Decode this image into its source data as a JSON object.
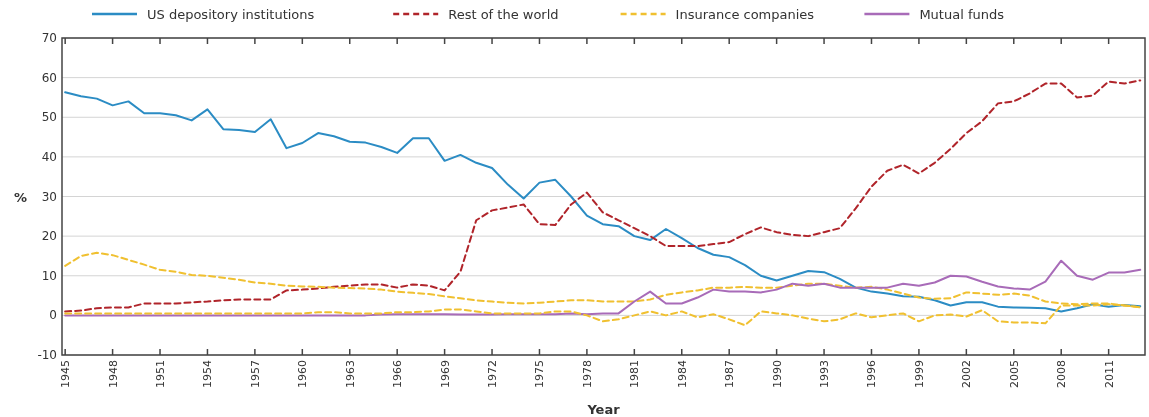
{
  "chart_data": {
    "type": "line",
    "xlabel": "Year",
    "ylabel": "%",
    "x": [
      1945,
      1946,
      1947,
      1948,
      1949,
      1950,
      1951,
      1952,
      1953,
      1954,
      1955,
      1956,
      1957,
      1958,
      1959,
      1960,
      1961,
      1962,
      1963,
      1964,
      1965,
      1966,
      1967,
      1968,
      1969,
      1970,
      1971,
      1972,
      1973,
      1974,
      1975,
      1976,
      1977,
      1978,
      1979,
      1980,
      1981,
      1982,
      1983,
      1984,
      1985,
      1986,
      1987,
      1988,
      1989,
      1990,
      1991,
      1992,
      1993,
      1994,
      1995,
      1996,
      1997,
      1998,
      1999,
      2000,
      2001,
      2002,
      2003,
      2004,
      2005,
      2006,
      2007,
      2008,
      2009,
      2010,
      2011,
      2012,
      2013
    ],
    "xlim": [
      1944.8,
      2013.3
    ],
    "xticks": [
      1945,
      1948,
      1951,
      1954,
      1957,
      1960,
      1963,
      1966,
      1969,
      1972,
      1975,
      1978,
      1981,
      1984,
      1987,
      1990,
      1993,
      1996,
      1999,
      2002,
      2005,
      2008,
      2011
    ],
    "ylim": [
      -10,
      70
    ],
    "yticks": [
      -10,
      0,
      10,
      20,
      30,
      40,
      50,
      60,
      70
    ],
    "grid": "y",
    "legend": "top",
    "series": [
      {
        "name": "US depository institutions",
        "color": "#2b8cc4",
        "line_style": "solid",
        "values": [
          56.3,
          55.3,
          54.7,
          53,
          54,
          51,
          51,
          50.5,
          49.2,
          52,
          47,
          46.8,
          46.3,
          49.5,
          42.2,
          43.5,
          46,
          45.2,
          43.8,
          43.6,
          42.5,
          41,
          44.7,
          44.7,
          39,
          40.5,
          38.5,
          37.2,
          33,
          29.5,
          33.5,
          34.2,
          30,
          25.2,
          23,
          22.5,
          20,
          19,
          21.8,
          19.5,
          17,
          15.3,
          14.7,
          12.7,
          10,
          8.8,
          10,
          11.2,
          10.9,
          9.2,
          7,
          6,
          5.5,
          4.8,
          4.7,
          3.8,
          2.5,
          3.3,
          3.3,
          2.2,
          2,
          1.9,
          1.8,
          1,
          1.8,
          2.8,
          2.2,
          2.6,
          2.3
        ]
      },
      {
        "name": "Rest of the world",
        "color": "#b0242a",
        "line_style": "dashed",
        "values": [
          1,
          1.2,
          1.8,
          2,
          2,
          3,
          3,
          3,
          3.3,
          3.5,
          3.8,
          4,
          4,
          4,
          6.3,
          6.5,
          6.8,
          7.2,
          7.5,
          7.8,
          7.8,
          7,
          7.8,
          7.5,
          6.3,
          11,
          24,
          26.5,
          27.2,
          28,
          23,
          22.8,
          28,
          31,
          26,
          24,
          22,
          20,
          17.5,
          17.5,
          17.5,
          18,
          18.5,
          20.5,
          22.2,
          21,
          20.3,
          20,
          21,
          22,
          27,
          32.5,
          36.5,
          38,
          35.8,
          38.5,
          42,
          46,
          49,
          53.5,
          54,
          56,
          58.5,
          58.5,
          55,
          55.5,
          59,
          58.5,
          59.3
        ]
      },
      {
        "name": "Insurance companies",
        "color": "#f0c030",
        "line_style": "dashed",
        "values": [
          12.5,
          15,
          15.8,
          15.2,
          14,
          12.8,
          11.5,
          11,
          10.2,
          10,
          9.5,
          9,
          8.3,
          8,
          7.5,
          7.3,
          7.2,
          7,
          6.9,
          6.8,
          6.5,
          6,
          5.7,
          5.4,
          4.8,
          4.3,
          3.8,
          3.5,
          3.2,
          3,
          3.2,
          3.5,
          3.8,
          3.8,
          3.5,
          3.5,
          3.5,
          4,
          5.2,
          5.8,
          6.3,
          7,
          7,
          7.2,
          7,
          7,
          7.5,
          8,
          8,
          7.5,
          7,
          7.2,
          6.5,
          5.5,
          4.5,
          4.2,
          4.3,
          5.8,
          5.5,
          5.2,
          5.5,
          5,
          3.5,
          3,
          2.8,
          3,
          3,
          2.5,
          2
        ]
      },
      {
        "name": "Mutual funds",
        "color": "#a86bb8",
        "line_style": "solid",
        "values": [
          0,
          0,
          0,
          0,
          0,
          0,
          0,
          0,
          0,
          0,
          0,
          0,
          0,
          0,
          0,
          0,
          0,
          0,
          0,
          0,
          0.2,
          0.3,
          0.3,
          0.3,
          0.3,
          0.2,
          0.2,
          0.2,
          0.3,
          0.3,
          0.3,
          0.3,
          0.5,
          0.3,
          0.5,
          0.5,
          3.5,
          6,
          3,
          3,
          4.5,
          6.5,
          6,
          6,
          5.8,
          6.5,
          8,
          7.5,
          8,
          7,
          7,
          7,
          7,
          8,
          7.5,
          8.3,
          10,
          9.8,
          8.5,
          7.3,
          6.8,
          6.5,
          8.5,
          13.8,
          10,
          9,
          10.8,
          10.8,
          11.5
        ]
      },
      {
        "color": "#f0c030",
        "line_style": "dashed",
        "values": [
          0.5,
          0.5,
          0.5,
          0.5,
          0.5,
          0.5,
          0.5,
          0.5,
          0.5,
          0.5,
          0.5,
          0.5,
          0.5,
          0.5,
          0.5,
          0.5,
          0.8,
          0.8,
          0.5,
          0.5,
          0.5,
          0.8,
          0.8,
          1,
          1.5,
          1.5,
          1,
          0.5,
          0.5,
          0.5,
          0.5,
          1,
          1,
          0,
          -1.5,
          -1,
          0,
          1,
          0,
          1,
          -0.5,
          0.3,
          -1,
          -2.5,
          1,
          0.5,
          0,
          -0.8,
          -1.5,
          -1,
          0.5,
          -0.5,
          0,
          0.5,
          -1.5,
          0,
          0.2,
          -0.3,
          1.3,
          -1.5,
          -1.8,
          -1.8,
          -2,
          2.5,
          2.5,
          2.5,
          2.8,
          2.5,
          2
        ]
      }
    ]
  }
}
